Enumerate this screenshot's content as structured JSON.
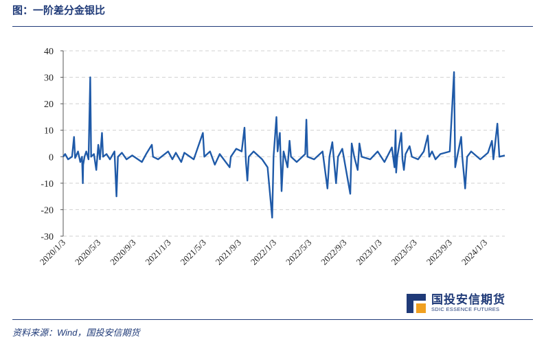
{
  "header": {
    "title": "图：一阶差分金银比"
  },
  "footer": {
    "source": "资料来源：Wind，国投安信期货"
  },
  "logo": {
    "cn": "国投安信期货",
    "en": "SDIC ESSENCE FUTURES",
    "colors": [
      "#1f3a78",
      "#f0a020"
    ]
  },
  "chart_data": {
    "type": "line",
    "title": "",
    "xlabel": "",
    "ylabel": "",
    "ylim": [
      -30,
      40
    ],
    "yticks": [
      -30,
      -20,
      -10,
      0,
      10,
      20,
      30,
      40
    ],
    "grid": "horizontal dashed",
    "line_color": "#1f5aa8",
    "xticks": [
      "2020/1/3",
      "2020/5/3",
      "2020/9/3",
      "2021/1/3",
      "2021/5/3",
      "2021/9/3",
      "2022/1/3",
      "2022/5/3",
      "2022/9/3",
      "2023/1/3",
      "2023/5/3",
      "2023/9/3",
      "2024/1/3"
    ],
    "x_start": "2020-01-03",
    "x_end": "2024-03-31",
    "series": [
      {
        "values": [
          [
            "2020-01-03",
            0
          ],
          [
            "2020-01-10",
            1
          ],
          [
            "2020-01-20",
            -1
          ],
          [
            "2020-02-03",
            0
          ],
          [
            "2020-02-10",
            7.5
          ],
          [
            "2020-02-14",
            -0.5
          ],
          [
            "2020-02-24",
            2
          ],
          [
            "2020-03-03",
            -2
          ],
          [
            "2020-03-09",
            0
          ],
          [
            "2020-03-12",
            -10
          ],
          [
            "2020-03-13",
            -3
          ],
          [
            "2020-03-18",
            0
          ],
          [
            "2020-03-24",
            2
          ],
          [
            "2020-04-01",
            -1
          ],
          [
            "2020-04-07",
            30
          ],
          [
            "2020-04-10",
            0
          ],
          [
            "2020-04-20",
            1
          ],
          [
            "2020-04-28",
            -5
          ],
          [
            "2020-05-05",
            4.5
          ],
          [
            "2020-05-11",
            -1
          ],
          [
            "2020-05-18",
            9
          ],
          [
            "2020-05-22",
            0
          ],
          [
            "2020-06-03",
            1
          ],
          [
            "2020-06-15",
            -1
          ],
          [
            "2020-07-01",
            2
          ],
          [
            "2020-07-08",
            -15
          ],
          [
            "2020-07-13",
            0
          ],
          [
            "2020-07-27",
            1.5
          ],
          [
            "2020-08-12",
            -1
          ],
          [
            "2020-09-01",
            0.5
          ],
          [
            "2020-10-05",
            -2
          ],
          [
            "2020-10-20",
            1
          ],
          [
            "2020-11-09",
            4.5
          ],
          [
            "2020-11-13",
            0
          ],
          [
            "2020-12-01",
            -1
          ],
          [
            "2021-01-05",
            2
          ],
          [
            "2021-01-20",
            -1
          ],
          [
            "2021-02-01",
            1.5
          ],
          [
            "2021-02-20",
            -2
          ],
          [
            "2021-03-03",
            1.5
          ],
          [
            "2021-04-05",
            -1
          ],
          [
            "2021-05-07",
            9
          ],
          [
            "2021-05-12",
            0
          ],
          [
            "2021-06-01",
            2
          ],
          [
            "2021-06-18",
            -3
          ],
          [
            "2021-07-05",
            1
          ],
          [
            "2021-08-09",
            -4
          ],
          [
            "2021-08-13",
            0
          ],
          [
            "2021-09-01",
            3
          ],
          [
            "2021-09-20",
            2
          ],
          [
            "2021-09-30",
            11
          ],
          [
            "2021-10-05",
            -2
          ],
          [
            "2021-10-10",
            -9
          ],
          [
            "2021-10-15",
            0
          ],
          [
            "2021-11-01",
            2
          ],
          [
            "2021-12-01",
            -1
          ],
          [
            "2021-12-20",
            -4
          ],
          [
            "2022-01-05",
            -23
          ],
          [
            "2022-01-10",
            0
          ],
          [
            "2022-01-20",
            15
          ],
          [
            "2022-01-24",
            2
          ],
          [
            "2022-02-01",
            9
          ],
          [
            "2022-02-07",
            -13
          ],
          [
            "2022-02-14",
            2
          ],
          [
            "2022-02-28",
            -4
          ],
          [
            "2022-03-07",
            6
          ],
          [
            "2022-03-12",
            0
          ],
          [
            "2022-04-01",
            -2
          ],
          [
            "2022-05-01",
            1
          ],
          [
            "2022-05-05",
            14
          ],
          [
            "2022-05-09",
            0
          ],
          [
            "2022-06-01",
            -1
          ],
          [
            "2022-07-01",
            2
          ],
          [
            "2022-07-18",
            -12
          ],
          [
            "2022-07-25",
            0
          ],
          [
            "2022-08-04",
            5.5
          ],
          [
            "2022-08-17",
            -10
          ],
          [
            "2022-08-24",
            0
          ],
          [
            "2022-09-08",
            3
          ],
          [
            "2022-10-06",
            -14
          ],
          [
            "2022-10-11",
            5
          ],
          [
            "2022-10-20",
            0
          ],
          [
            "2022-11-01",
            -5
          ],
          [
            "2022-11-07",
            5
          ],
          [
            "2022-11-15",
            0
          ],
          [
            "2022-12-15",
            -1
          ],
          [
            "2023-01-10",
            2
          ],
          [
            "2023-02-03",
            -2
          ],
          [
            "2023-03-01",
            3.5
          ],
          [
            "2023-03-10",
            -4
          ],
          [
            "2023-03-14",
            10
          ],
          [
            "2023-03-16",
            -6
          ],
          [
            "2023-03-20",
            0
          ],
          [
            "2023-04-03",
            9
          ],
          [
            "2023-04-07",
            -1
          ],
          [
            "2023-04-12",
            -5
          ],
          [
            "2023-04-18",
            1
          ],
          [
            "2023-05-02",
            4
          ],
          [
            "2023-05-10",
            0
          ],
          [
            "2023-06-01",
            -1
          ],
          [
            "2023-06-21",
            2
          ],
          [
            "2023-07-05",
            8
          ],
          [
            "2023-07-10",
            0
          ],
          [
            "2023-07-20",
            2
          ],
          [
            "2023-08-01",
            -1
          ],
          [
            "2023-08-18",
            1
          ],
          [
            "2023-09-20",
            2
          ],
          [
            "2023-10-05",
            32
          ],
          [
            "2023-10-09",
            -4
          ],
          [
            "2023-10-16",
            0
          ],
          [
            "2023-10-30",
            7.5
          ],
          [
            "2023-11-03",
            0
          ],
          [
            "2023-11-13",
            -12
          ],
          [
            "2023-11-20",
            0
          ],
          [
            "2023-12-04",
            2
          ],
          [
            "2024-01-05",
            -1
          ],
          [
            "2024-02-01",
            1.5
          ],
          [
            "2024-02-15",
            6
          ],
          [
            "2024-02-20",
            -1
          ],
          [
            "2024-03-05",
            12.5
          ],
          [
            "2024-03-12",
            0
          ],
          [
            "2024-03-31",
            0.5
          ]
        ]
      }
    ]
  }
}
